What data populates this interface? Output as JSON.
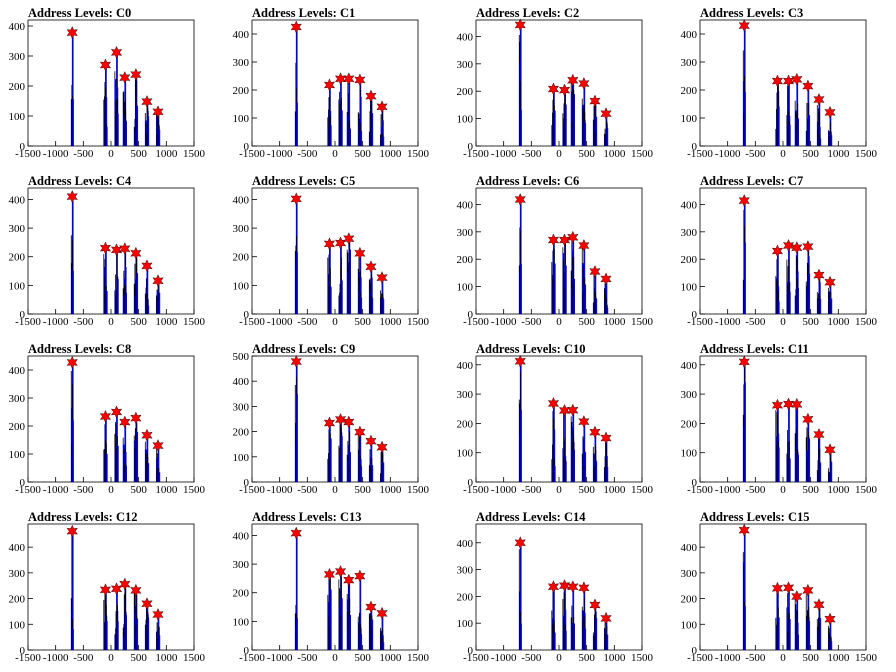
{
  "chart_data": [
    {
      "type": "bar",
      "title": "Address Levels: C0",
      "xlim": [
        -1500,
        1500
      ],
      "xticks": [
        "-1500",
        "-1000",
        "-500",
        "0",
        "500",
        "1000",
        "1500"
      ],
      "ylim": [
        0,
        420
      ],
      "yticks": [
        "0",
        "100",
        "200",
        "300",
        "400"
      ],
      "peaks": {
        "x": [
          -700,
          -100,
          100,
          250,
          450,
          650,
          850
        ],
        "y": [
          378,
          270,
          312,
          228,
          238,
          148,
          114
        ]
      }
    },
    {
      "type": "bar",
      "title": "Address Levels: C1",
      "xlim": [
        -1500,
        1500
      ],
      "xticks": [
        "-1500",
        "-1000",
        "-500",
        "0",
        "500",
        "1000",
        "1500"
      ],
      "ylim": [
        0,
        450
      ],
      "yticks": [
        "0",
        "100",
        "200",
        "300",
        "400"
      ],
      "peaks": {
        "x": [
          -700,
          -100,
          100,
          250,
          450,
          650,
          850
        ],
        "y": [
          425,
          218,
          240,
          240,
          236,
          178,
          140
        ]
      }
    },
    {
      "type": "bar",
      "title": "Address Levels: C2",
      "xlim": [
        -1500,
        1500
      ],
      "xticks": [
        "-1500",
        "-1000",
        "-500",
        "0",
        "500",
        "1000",
        "1500"
      ],
      "ylim": [
        0,
        460
      ],
      "yticks": [
        "0",
        "100",
        "200",
        "300",
        "400"
      ],
      "peaks": {
        "x": [
          -700,
          -100,
          100,
          250,
          450,
          650,
          850
        ],
        "y": [
          442,
          208,
          204,
          240,
          228,
          164,
          118
        ]
      }
    },
    {
      "type": "bar",
      "title": "Address Levels: C3",
      "xlim": [
        -1500,
        1500
      ],
      "xticks": [
        "-1500",
        "-1000",
        "-500",
        "0",
        "500",
        "1000",
        "1500"
      ],
      "ylim": [
        0,
        450
      ],
      "yticks": [
        "0",
        "100",
        "200",
        "300",
        "400"
      ],
      "peaks": {
        "x": [
          -700,
          -100,
          100,
          250,
          450,
          650,
          850
        ],
        "y": [
          430,
          232,
          232,
          238,
          214,
          166,
          120
        ]
      }
    },
    {
      "type": "bar",
      "title": "Address Levels: C4",
      "xlim": [
        -1500,
        1500
      ],
      "xticks": [
        "-1500",
        "-1000",
        "-500",
        "0",
        "500",
        "1000",
        "1500"
      ],
      "ylim": [
        0,
        440
      ],
      "yticks": [
        "0",
        "100",
        "200",
        "300",
        "400"
      ],
      "peaks": {
        "x": [
          -700,
          -100,
          100,
          250,
          450,
          650,
          850
        ],
        "y": [
          410,
          230,
          224,
          228,
          212,
          168,
          116
        ]
      }
    },
    {
      "type": "bar",
      "title": "Address Levels: C5",
      "xlim": [
        -1500,
        1500
      ],
      "xticks": [
        "-1500",
        "-1000",
        "-500",
        "0",
        "500",
        "1000",
        "1500"
      ],
      "ylim": [
        0,
        440
      ],
      "yticks": [
        "0",
        "100",
        "200",
        "300",
        "400"
      ],
      "peaks": {
        "x": [
          -700,
          -100,
          100,
          250,
          450,
          650,
          850
        ],
        "y": [
          402,
          245,
          248,
          263,
          212,
          165,
          127
        ]
      }
    },
    {
      "type": "bar",
      "title": "Address Levels: C6",
      "xlim": [
        -1500,
        1500
      ],
      "xticks": [
        "-1500",
        "-1000",
        "-500",
        "0",
        "500",
        "1000",
        "1500"
      ],
      "ylim": [
        0,
        460
      ],
      "yticks": [
        "0",
        "100",
        "200",
        "300",
        "400"
      ],
      "peaks": {
        "x": [
          -700,
          -100,
          100,
          250,
          450,
          650,
          850
        ],
        "y": [
          418,
          270,
          270,
          280,
          250,
          155,
          128
        ]
      }
    },
    {
      "type": "bar",
      "title": "Address Levels: C7",
      "xlim": [
        -1500,
        1500
      ],
      "xticks": [
        "-1500",
        "-1000",
        "-500",
        "0",
        "500",
        "1000",
        "1500"
      ],
      "ylim": [
        0,
        460
      ],
      "yticks": [
        "0",
        "100",
        "200",
        "300",
        "400"
      ],
      "peaks": {
        "x": [
          -700,
          -100,
          100,
          250,
          450,
          650,
          850
        ],
        "y": [
          414,
          230,
          250,
          242,
          246,
          142,
          116
        ]
      }
    },
    {
      "type": "bar",
      "title": "Address Levels: C8",
      "xlim": [
        -1500,
        1500
      ],
      "xticks": [
        "-1500",
        "-1000",
        "-500",
        "0",
        "500",
        "1000",
        "1500"
      ],
      "ylim": [
        0,
        450
      ],
      "yticks": [
        "0",
        "100",
        "200",
        "300",
        "400"
      ],
      "peaks": {
        "x": [
          -700,
          -100,
          100,
          250,
          450,
          650,
          850
        ],
        "y": [
          427,
          234,
          250,
          214,
          228,
          167,
          130
        ]
      }
    },
    {
      "type": "bar",
      "title": "Address Levels: C9",
      "xlim": [
        -1500,
        1500
      ],
      "xticks": [
        "-1500",
        "-1000",
        "-500",
        "0",
        "500",
        "1000",
        "1500"
      ],
      "ylim": [
        0,
        500
      ],
      "yticks": [
        "0",
        "100",
        "200",
        "300",
        "400",
        "500"
      ],
      "peaks": {
        "x": [
          -700,
          -100,
          100,
          250,
          450,
          650,
          850
        ],
        "y": [
          478,
          234,
          248,
          238,
          198,
          162,
          138
        ]
      }
    },
    {
      "type": "bar",
      "title": "Address Levels: C10",
      "xlim": [
        -1500,
        1500
      ],
      "xticks": [
        "-1500",
        "-1000",
        "-500",
        "0",
        "500",
        "1000",
        "1500"
      ],
      "ylim": [
        0,
        430
      ],
      "yticks": [
        "0",
        "100",
        "200",
        "300",
        "400"
      ],
      "peaks": {
        "x": [
          -700,
          -100,
          100,
          250,
          450,
          650,
          850
        ],
        "y": [
          412,
          268,
          244,
          245,
          206,
          170,
          150
        ]
      }
    },
    {
      "type": "bar",
      "title": "Address Levels: C11",
      "xlim": [
        -1500,
        1500
      ],
      "xticks": [
        "-1500",
        "-1000",
        "-500",
        "0",
        "500",
        "1000",
        "1500"
      ],
      "ylim": [
        0,
        430
      ],
      "yticks": [
        "0",
        "100",
        "200",
        "300",
        "400"
      ],
      "peaks": {
        "x": [
          -700,
          -100,
          100,
          250,
          450,
          650,
          850
        ],
        "y": [
          410,
          262,
          266,
          265,
          214,
          162,
          110
        ]
      }
    },
    {
      "type": "bar",
      "title": "Address Levels: C12",
      "xlim": [
        -1500,
        1500
      ],
      "xticks": [
        "-1500",
        "-1000",
        "-500",
        "0",
        "500",
        "1000",
        "1500"
      ],
      "ylim": [
        0,
        490
      ],
      "yticks": [
        "0",
        "100",
        "200",
        "300",
        "400"
      ],
      "peaks": {
        "x": [
          -700,
          -100,
          100,
          250,
          450,
          650,
          850
        ],
        "y": [
          462,
          234,
          238,
          256,
          232,
          180,
          138
        ]
      }
    },
    {
      "type": "bar",
      "title": "Address Levels: C13",
      "xlim": [
        -1500,
        1500
      ],
      "xticks": [
        "-1500",
        "-1000",
        "-500",
        "0",
        "500",
        "1000",
        "1500"
      ],
      "ylim": [
        0,
        440
      ],
      "yticks": [
        "0",
        "100",
        "200",
        "300",
        "400"
      ],
      "peaks": {
        "x": [
          -700,
          -100,
          100,
          250,
          450,
          650,
          850
        ],
        "y": [
          408,
          264,
          274,
          244,
          258,
          150,
          128
        ]
      }
    },
    {
      "type": "bar",
      "title": "Address Levels: C14",
      "xlim": [
        -1500,
        1500
      ],
      "xticks": [
        "-1500",
        "-1000",
        "-500",
        "0",
        "500",
        "1000",
        "1500"
      ],
      "ylim": [
        0,
        470
      ],
      "yticks": [
        "0",
        "100",
        "200",
        "300",
        "400"
      ],
      "peaks": {
        "x": [
          -700,
          -100,
          100,
          250,
          450,
          650,
          850
        ],
        "y": [
          400,
          236,
          240,
          236,
          232,
          168,
          118
        ]
      }
    },
    {
      "type": "bar",
      "title": "Address Levels: C15",
      "xlim": [
        -1500,
        1500
      ],
      "xticks": [
        "-1500",
        "-1000",
        "-500",
        "0",
        "500",
        "1000",
        "1500"
      ],
      "ylim": [
        0,
        490
      ],
      "yticks": [
        "0",
        "100",
        "200",
        "300",
        "400"
      ],
      "peaks": {
        "x": [
          -700,
          -100,
          100,
          250,
          450,
          650,
          850
        ],
        "y": [
          466,
          240,
          242,
          208,
          232,
          176,
          120
        ]
      }
    }
  ],
  "colors": {
    "histogram": "#0000ff",
    "background_fill": "#000000",
    "peak_marker": "#ff0000"
  }
}
